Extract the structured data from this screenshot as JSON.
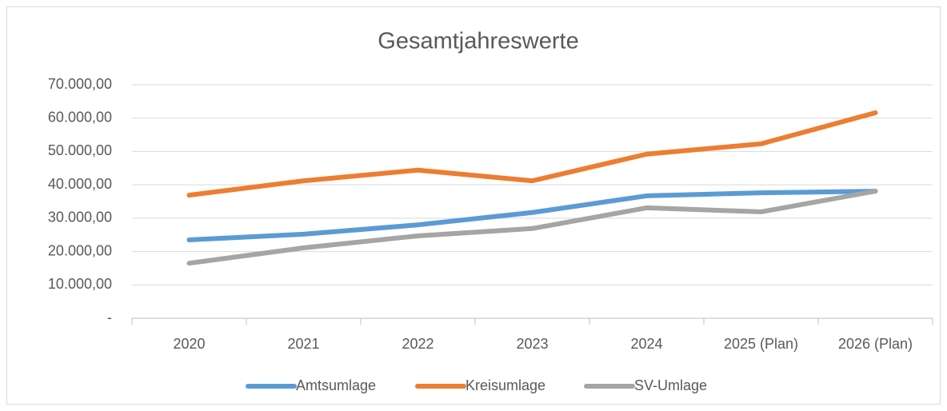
{
  "chart_data": {
    "type": "line",
    "title": "Gesamtjahreswerte",
    "categories": [
      "2020",
      "2021",
      "2022",
      "2023",
      "2024",
      "2025 (Plan)",
      "2026 (Plan)"
    ],
    "series": [
      {
        "name": "Amtsumlage",
        "color": "#5b9bd5",
        "values": [
          23500,
          25200,
          28000,
          31700,
          36700,
          37600,
          38100
        ]
      },
      {
        "name": "Kreisumlage",
        "color": "#ed7d31",
        "values": [
          36900,
          41200,
          44400,
          41200,
          49200,
          52300,
          61600
        ]
      },
      {
        "name": "SV-Umlage",
        "color": "#a5a5a5",
        "values": [
          16500,
          21100,
          24700,
          26900,
          33100,
          31900,
          38100
        ]
      }
    ],
    "ylim": [
      0,
      70000
    ],
    "yticks": [
      {
        "value": 0,
        "label": "-"
      },
      {
        "value": 10000,
        "label": "10.000,00"
      },
      {
        "value": 20000,
        "label": "20.000,00"
      },
      {
        "value": 30000,
        "label": "30.000,00"
      },
      {
        "value": 40000,
        "label": "40.000,00"
      },
      {
        "value": 50000,
        "label": "50.000,00"
      },
      {
        "value": 60000,
        "label": "60.000,00"
      },
      {
        "value": 70000,
        "label": "70.000,00"
      }
    ],
    "grid": true,
    "legend": "bottom"
  }
}
